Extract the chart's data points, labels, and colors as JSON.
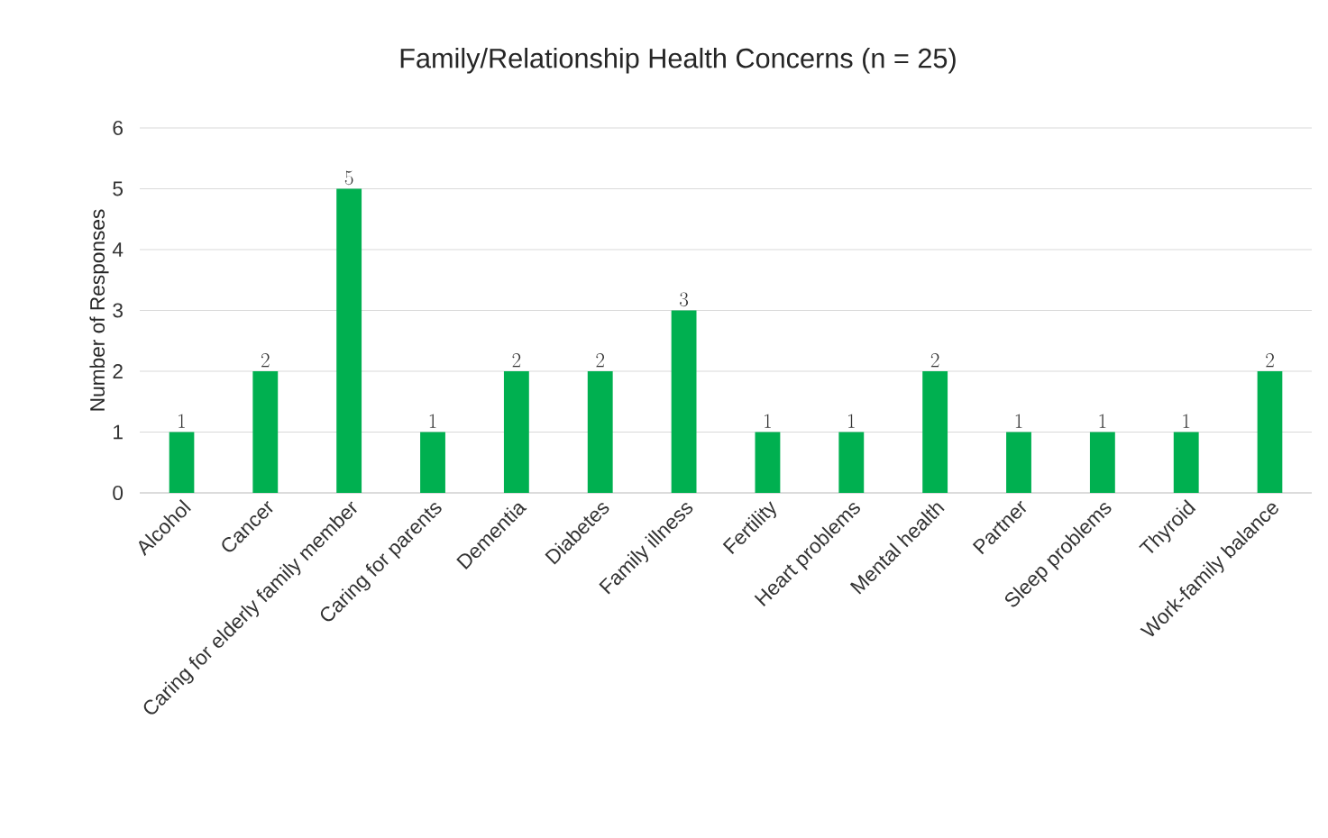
{
  "chart_data": {
    "type": "bar",
    "title": "Family/Relationship Health Concerns (n = 25)",
    "ylabel": "Number of Responses",
    "categories": [
      "Alcohol",
      "Cancer",
      "Caring for elderly family member",
      "Caring for parents",
      "Dementia",
      "Diabetes",
      "Family illness",
      "Fertility",
      "Heart problems",
      "Mental health",
      "Partner",
      "Sleep problems",
      "Thyroid",
      "Work-family balance"
    ],
    "values": [
      1,
      2,
      5,
      1,
      2,
      2,
      3,
      1,
      1,
      2,
      1,
      1,
      1,
      2
    ],
    "color": "#00b050",
    "ylim": [
      0,
      6
    ],
    "yticks": [
      0,
      1,
      2,
      3,
      4,
      5,
      6
    ],
    "grid": "y",
    "data_labels": true
  }
}
